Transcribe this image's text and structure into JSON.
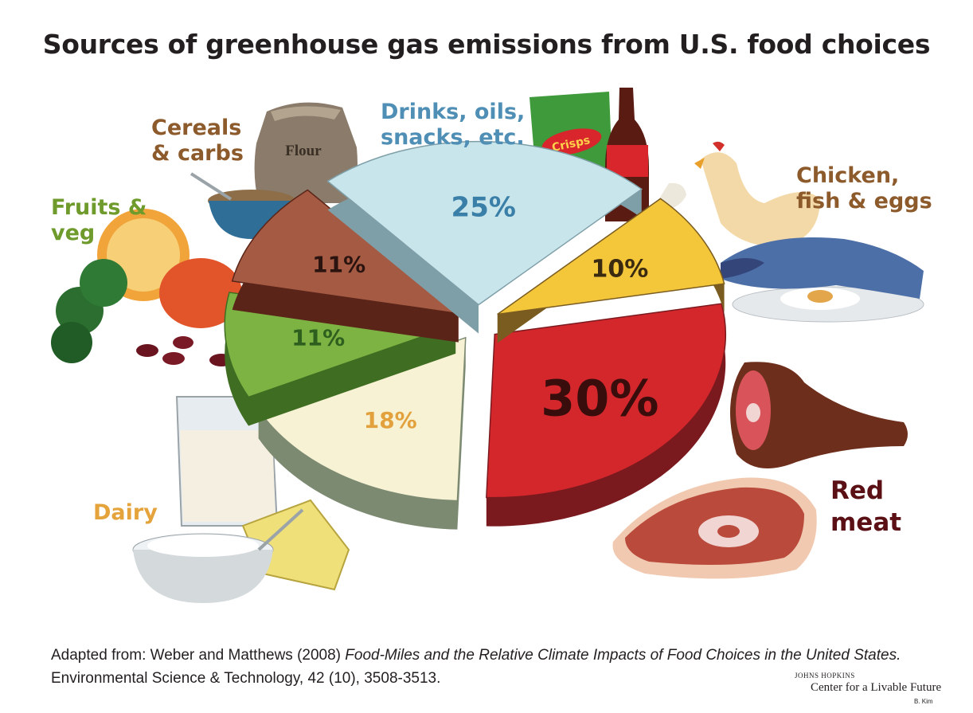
{
  "title": "Sources of greenhouse gas emissions from U.S. food choices",
  "chart_data": {
    "type": "pie",
    "title": "Sources of greenhouse gas emissions from U.S. food choices",
    "unit": "%",
    "slices": [
      {
        "label": "Red meat",
        "value": 30,
        "display": "30%",
        "color": "#d3272c",
        "side_color": "#7a1a1e",
        "text_color": "#3a0d0d"
      },
      {
        "label": "Dairy",
        "value": 18,
        "display": "18%",
        "color": "#f7f2d4",
        "side_color": "#7c8a72",
        "text_color": "#e2a13c"
      },
      {
        "label": "Fruits & veg",
        "value": 11,
        "display": "11%",
        "color": "#7cb342",
        "side_color": "#3f6d22",
        "text_color": "#2e5f1e"
      },
      {
        "label": "Cereals & carbs",
        "value": 11,
        "display": "11%",
        "color": "#a45a43",
        "side_color": "#5b2418",
        "text_color": "#2b1410"
      },
      {
        "label": "Drinks, oils, snacks, etc.",
        "value": 25,
        "display": "25%",
        "color": "#c9e5ec",
        "side_color": "#7f9fa8",
        "text_color": "#3a7fa7"
      },
      {
        "label": "Chicken, fish & eggs",
        "value": 10,
        "display": "10%",
        "color": "#f4c63a",
        "side_color": "#7a5c20",
        "text_color": "#3a2a10"
      }
    ]
  },
  "labels": {
    "cereals_line1": "Cereals",
    "cereals_line2": "& carbs",
    "drinks_line1": "Drinks, oils,",
    "drinks_line2": "snacks, etc.",
    "chicken_line1": "Chicken,",
    "chicken_line2": "fish & eggs",
    "fruits_line1": "Fruits &",
    "fruits_line2": "veg",
    "dairy": "Dairy",
    "redmeat_line1": "Red",
    "redmeat_line2": "meat"
  },
  "illustrations": {
    "flour": "Flour",
    "crisps": "Crisps"
  },
  "source": {
    "prefix": "Adapted from:  Weber and Matthews (2008) ",
    "title_italic": "Food-Miles and the Relative Climate Impacts of Food Choices in the United States.",
    "suffix": "  Environmental Science & Technology, 42 (10), 3508-3513."
  },
  "credit": {
    "org": "JOHNS HOPKINS",
    "center": "Center for a Livable Future",
    "author": "B. Kim"
  }
}
